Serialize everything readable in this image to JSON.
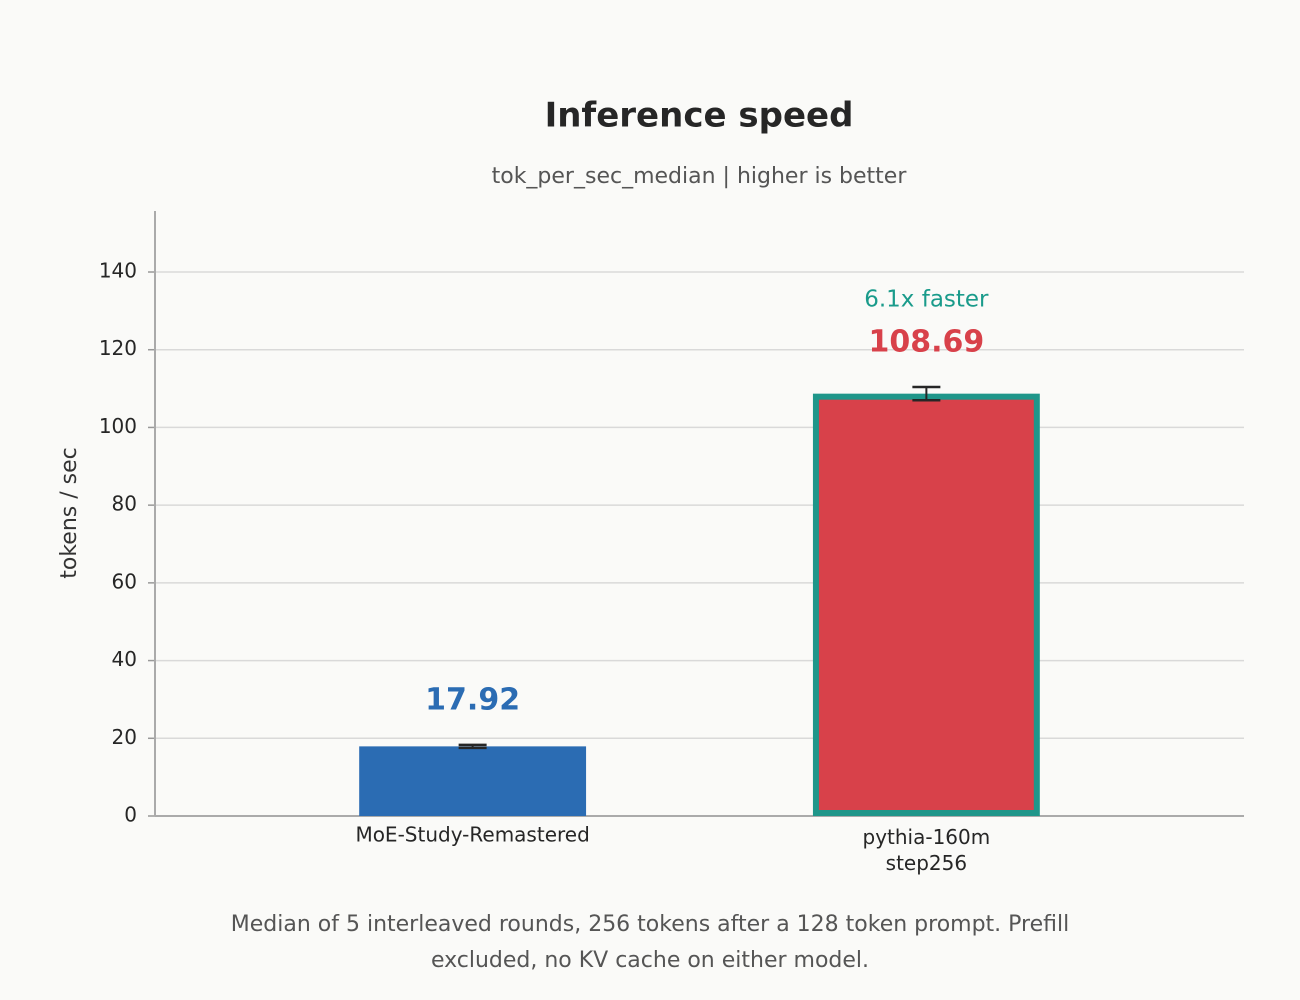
{
  "chart_data": {
    "type": "bar",
    "title": "Inference speed",
    "subtitle": "tok_per_sec_median  |  higher is better",
    "ylabel": "tokens / sec",
    "categories": [
      "MoE-Study-Remastered",
      "pythia-160m\nstep256"
    ],
    "values": [
      17.92,
      108.69
    ],
    "errors": [
      0.4,
      1.7
    ],
    "colors": [
      "#2b6cb3",
      "#d8414a"
    ],
    "edge_colors": [
      null,
      "#1f968a"
    ],
    "annotation": "6.1x faster",
    "annotation_color": "#1a9b8b",
    "ylim": [
      0,
      155.7
    ],
    "yticks": [
      0,
      20,
      40,
      60,
      80,
      100,
      120,
      140
    ],
    "grid": true,
    "footnote": "Median of 5 interleaved rounds, 256 tokens after a 128 token prompt. Prefill excluded, no KV cache on either model."
  }
}
